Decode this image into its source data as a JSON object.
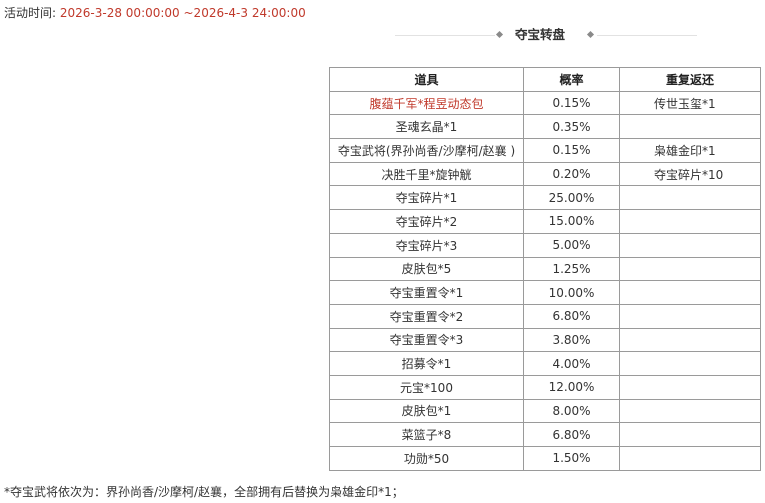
{
  "activity": {
    "label": "活动时间:",
    "value": "2026-3-28 00:00:00 ~2026-4-3 24:00:00"
  },
  "section_title": "夺宝转盘",
  "table": {
    "headers": [
      "道具",
      "概率",
      "重复返还"
    ],
    "rows": [
      {
        "item": "腹蕴千军*程昱动态包",
        "rate": "0.15%",
        "refund": "传世玉玺*1",
        "highlight": true
      },
      {
        "item": "圣魂玄晶*1",
        "rate": "0.35%",
        "refund": ""
      },
      {
        "item": "夺宝武将(界孙尚香/沙摩柯/赵襄 )",
        "rate": "0.15%",
        "refund": "枭雄金印*1"
      },
      {
        "item": "决胜千里*旋钟觥",
        "rate": "0.20%",
        "refund": "夺宝碎片*10"
      },
      {
        "item": "夺宝碎片*1",
        "rate": "25.00%",
        "refund": ""
      },
      {
        "item": "夺宝碎片*2",
        "rate": "15.00%",
        "refund": ""
      },
      {
        "item": "夺宝碎片*3",
        "rate": "5.00%",
        "refund": ""
      },
      {
        "item": "皮肤包*5",
        "rate": "1.25%",
        "refund": ""
      },
      {
        "item": "夺宝重置令*1",
        "rate": "10.00%",
        "refund": ""
      },
      {
        "item": "夺宝重置令*2",
        "rate": "6.80%",
        "refund": ""
      },
      {
        "item": "夺宝重置令*3",
        "rate": "3.80%",
        "refund": ""
      },
      {
        "item": "招募令*1",
        "rate": "4.00%",
        "refund": ""
      },
      {
        "item": "元宝*100",
        "rate": "12.00%",
        "refund": ""
      },
      {
        "item": "皮肤包*1",
        "rate": "8.00%",
        "refund": ""
      },
      {
        "item": "菜篮子*8",
        "rate": "6.80%",
        "refund": ""
      },
      {
        "item": "功勋*50",
        "rate": "1.50%",
        "refund": ""
      }
    ]
  },
  "footnote": "*夺宝武将依次为：界孙尚香/沙摩柯/赵襄，全部拥有后替换为枭雄金印*1；",
  "colors": {
    "highlight_text": "#c0392b",
    "border": "#9a9a9a"
  }
}
